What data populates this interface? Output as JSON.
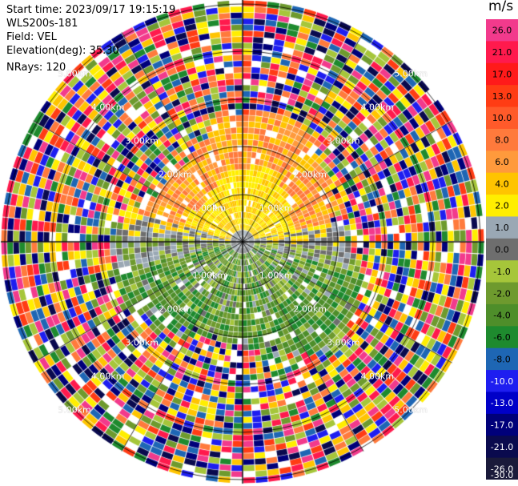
{
  "header": {
    "start_time": "Start time: 2023/09/17 19:15:19",
    "instrument": "WLS200s-181",
    "field": "Field: VEL",
    "elevation": "Elevation(deg): 35.30",
    "nrays": "NRays: 120"
  },
  "colorbar": {
    "unit": "m/s",
    "ticks": [
      "26.0",
      "21.0",
      "17.0",
      "13.0",
      "10.0",
      "8.0",
      "6.0",
      "4.0",
      "2.0",
      "1.0",
      "0.0",
      "-1.0",
      "-2.0",
      "-4.0",
      "-6.0",
      "-8.0",
      "-10.0",
      "-13.0",
      "-17.0",
      "-21.0",
      "-26.0",
      "-30.0"
    ],
    "colors": [
      "#f23a8c",
      "#ff1a4d",
      "#ff1a1a",
      "#ff3c14",
      "#ff5a2a",
      "#ff7a3c",
      "#ff9a3c",
      "#ffc400",
      "#ffee00",
      "#9aa8b4",
      "#6e6e6e",
      "#a6c63a",
      "#6e9a2e",
      "#4e8e2a",
      "#1e8a2e",
      "#1e66b4",
      "#1e1ef0",
      "#0000c8",
      "#00007a",
      "#0a0a4e",
      "#1a1a3a"
    ]
  },
  "range_rings": {
    "labels": [
      "1.00km",
      "2.00km",
      "3.00km",
      "4.00km",
      "5.00km"
    ],
    "max_km": 6,
    "nrays": 120
  }
}
